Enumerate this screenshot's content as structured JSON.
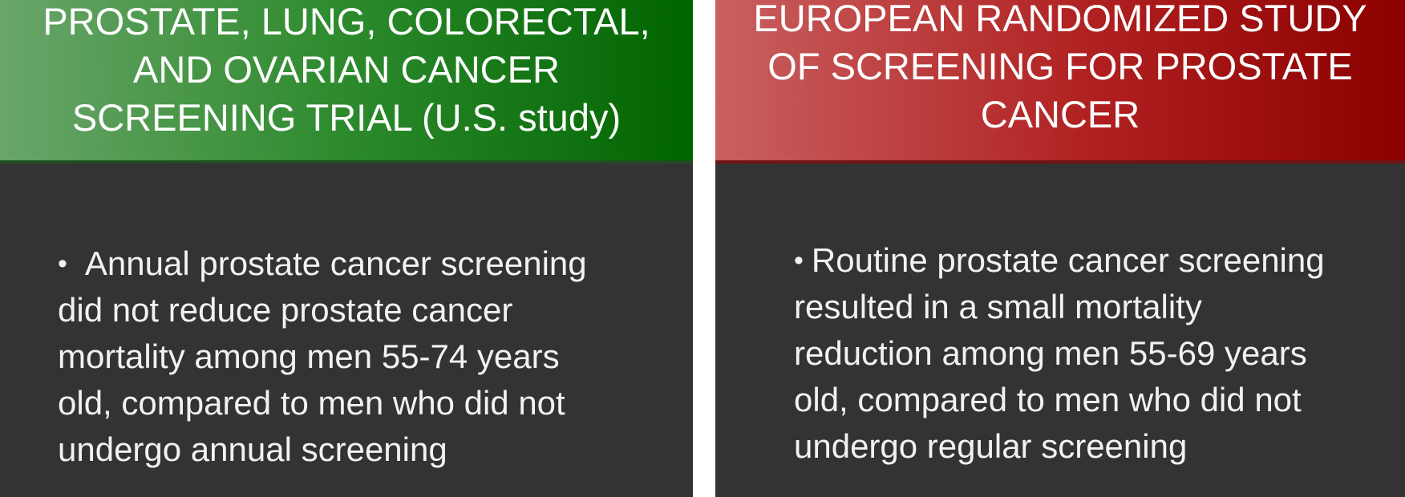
{
  "panels": {
    "left": {
      "title_lines": [
        "PROSTATE, LUNG, COLORECTAL,",
        "AND OVARIAN CANCER",
        "SCREENING TRIAL (U.S. study)"
      ],
      "bullet": "•",
      "body_lines": [
        "Annual prostate cancer screening",
        "did not reduce prostate cancer",
        "mortality among men 55-74 years",
        "old, compared to men who did not",
        "undergo annual screening"
      ],
      "header_color": "#006400"
    },
    "right": {
      "title_lines": [
        "EUROPEAN RANDOMIZED STUDY",
        "OF SCREENING FOR PROSTATE",
        "CANCER"
      ],
      "bullet": "•",
      "body_lines": [
        "Routine prostate cancer screening",
        "resulted in a small mortality",
        "reduction among men 55-69 years",
        "old, compared to men who did not",
        "undergo regular screening"
      ],
      "header_color": "#8c0000"
    }
  },
  "colors": {
    "body_background": "#333333",
    "text": "#ffffff"
  }
}
